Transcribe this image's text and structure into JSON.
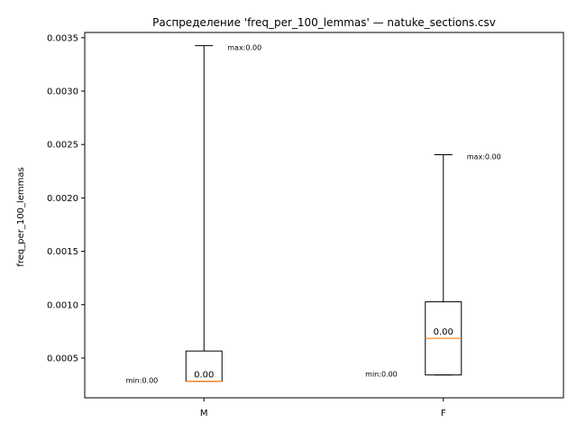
{
  "chart_data": {
    "type": "box",
    "title": "Распределение 'freq_per_100_lemmas' — natuke_sections.csv",
    "xlabel": "",
    "ylabel": "freq_per_100_lemmas",
    "ylim": [
      0.000128,
      0.003549
    ],
    "yticks": [
      0.0005,
      0.001,
      0.0015,
      0.002,
      0.0025,
      0.003,
      0.0035
    ],
    "ytick_labels": [
      "0.0005",
      "0.0010",
      "0.0015",
      "0.0020",
      "0.0025",
      "0.0030",
      "0.0035"
    ],
    "grid": false,
    "legend": "none",
    "categories": [
      "M",
      "F"
    ],
    "boxes": [
      {
        "category": "M",
        "min": 0.000283,
        "q1": 0.000283,
        "median": 0.000283,
        "q3": 0.000566,
        "max": 0.003425,
        "median_label": "0.00",
        "min_label": "min:0.00",
        "max_label": "max:0.00"
      },
      {
        "category": "F",
        "min": 0.000342,
        "q1": 0.000342,
        "median": 0.000685,
        "q3": 0.001027,
        "max": 0.002404,
        "median_label": "0.00",
        "min_label": "min:0.00",
        "max_label": "max:0.00"
      }
    ],
    "colors": {
      "box": "#000000",
      "median": "#ff7f0e",
      "whisker": "#000000"
    }
  }
}
